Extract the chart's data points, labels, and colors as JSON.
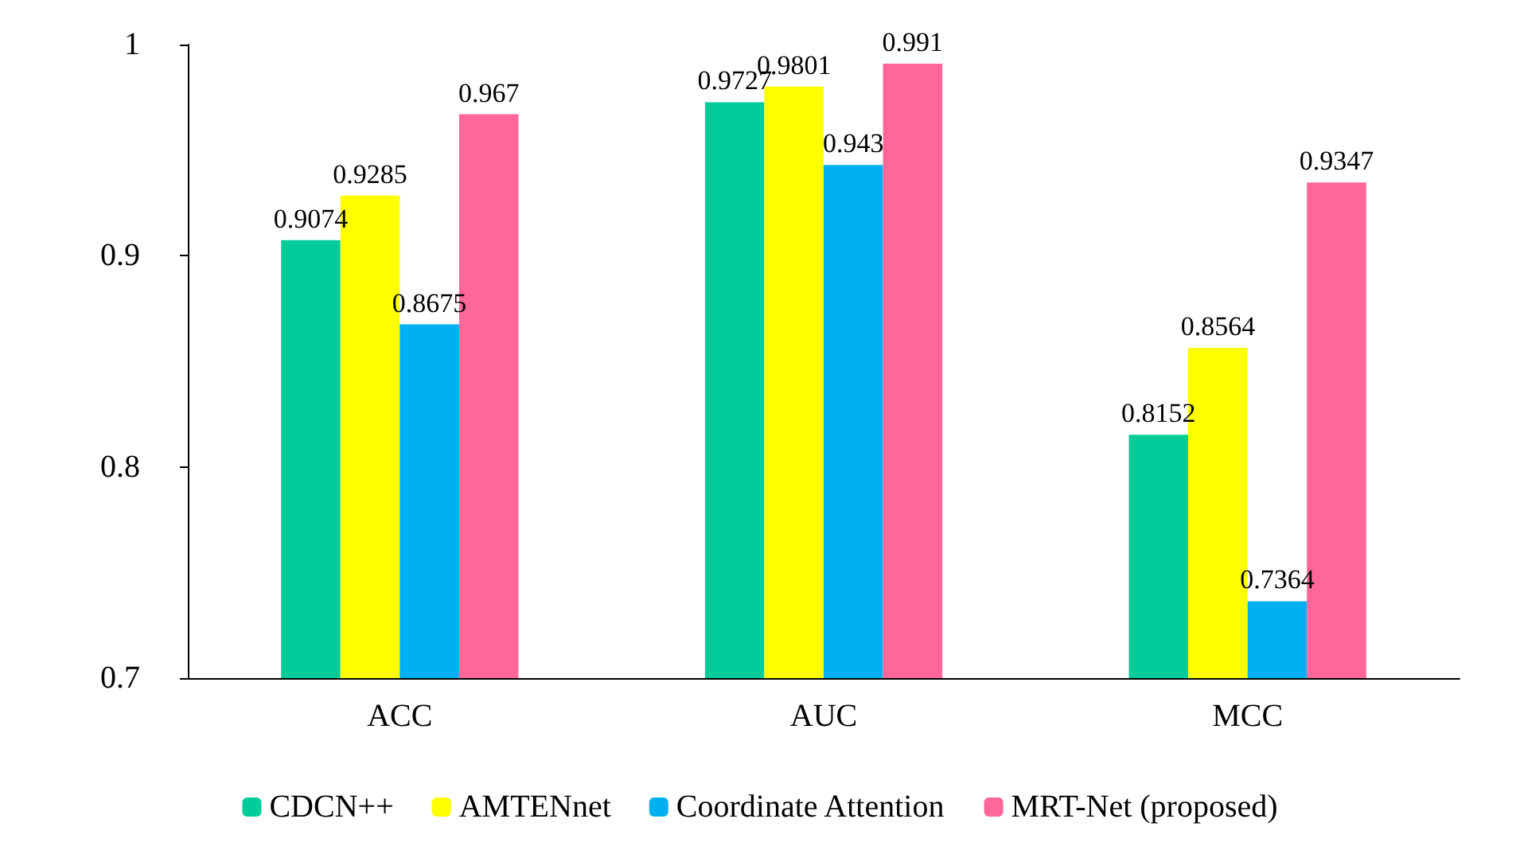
{
  "chart_data": {
    "type": "bar",
    "categories": [
      "ACC",
      "AUC",
      "MCC"
    ],
    "series": [
      {
        "name": "CDCN++",
        "color": "#00cc99",
        "values": [
          0.9074,
          0.9727,
          0.8152
        ]
      },
      {
        "name": "AMTENnet",
        "color": "#ffff00",
        "values": [
          0.9285,
          0.9801,
          0.8564
        ]
      },
      {
        "name": "Coordinate Attention",
        "color": "#00b0f0",
        "values": [
          0.8675,
          0.943,
          0.7364
        ]
      },
      {
        "name": "MRT-Net (proposed)",
        "color": "#ff6699",
        "values": [
          0.967,
          0.991,
          0.9347
        ]
      }
    ],
    "ylim": [
      0.7,
      1
    ],
    "yticks": [
      0.7,
      0.8,
      0.9,
      1
    ],
    "grid": false,
    "legend": "bottom",
    "data_labels": true
  }
}
